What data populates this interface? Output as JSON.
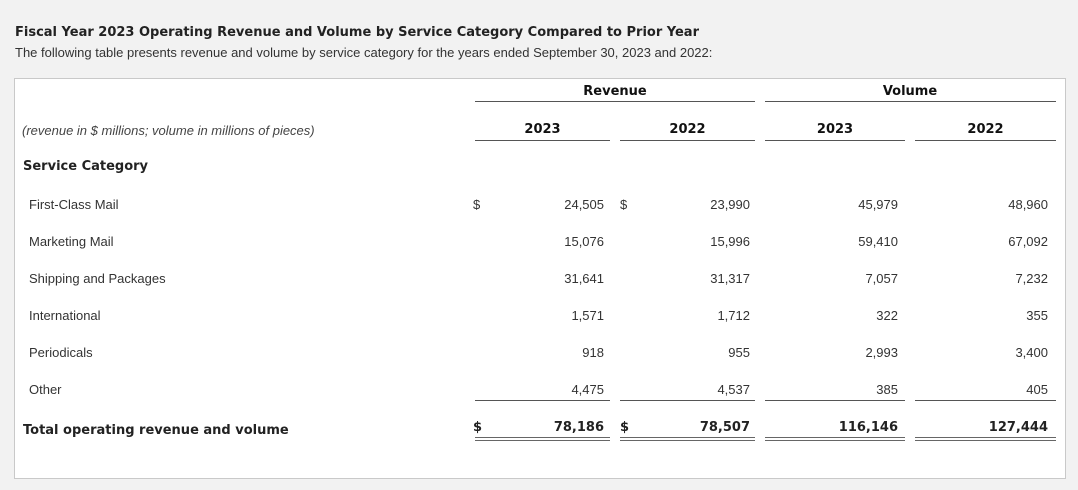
{
  "title": "Fiscal Year 2023 Operating Revenue and Volume by Service Category Compared to Prior Year",
  "subtitle": "The following table presents revenue and volume by service category for the years ended September 30, 2023 and 2022:",
  "table": {
    "unit_note": "(revenue in $ millions; volume in millions of pieces)",
    "groups": [
      "Revenue",
      "Volume"
    ],
    "years": [
      "2023",
      "2022",
      "2023",
      "2022"
    ],
    "section_label": "Service Category",
    "currency_symbol": "$",
    "rows": [
      {
        "label": "First-Class Mail",
        "values": [
          "24,505",
          "23,990",
          "45,979",
          "48,960"
        ]
      },
      {
        "label": "Marketing Mail",
        "values": [
          "15,076",
          "15,996",
          "59,410",
          "67,092"
        ]
      },
      {
        "label": "Shipping and Packages",
        "values": [
          "31,641",
          "31,317",
          "7,057",
          "7,232"
        ]
      },
      {
        "label": "International",
        "values": [
          "1,571",
          "1,712",
          "322",
          "355"
        ]
      },
      {
        "label": "Periodicals",
        "values": [
          "918",
          "955",
          "2,993",
          "3,400"
        ]
      },
      {
        "label": "Other",
        "values": [
          "4,475",
          "4,537",
          "385",
          "405"
        ]
      }
    ],
    "total": {
      "label": "Total operating revenue and volume",
      "values": [
        "78,186",
        "78,507",
        "116,146",
        "127,444"
      ]
    }
  }
}
